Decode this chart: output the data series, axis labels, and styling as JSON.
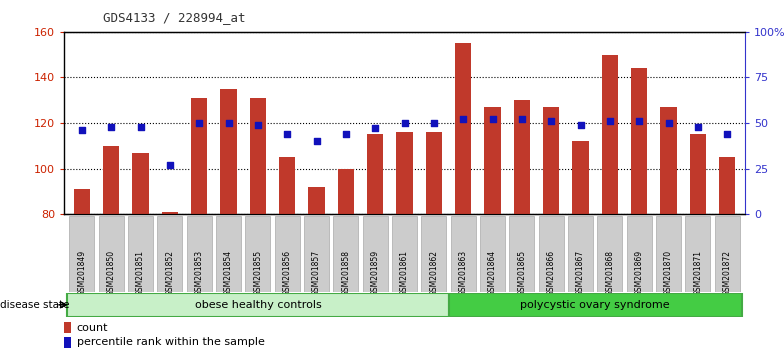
{
  "title": "GDS4133 / 228994_at",
  "samples": [
    "GSM201849",
    "GSM201850",
    "GSM201851",
    "GSM201852",
    "GSM201853",
    "GSM201854",
    "GSM201855",
    "GSM201856",
    "GSM201857",
    "GSM201858",
    "GSM201859",
    "GSM201861",
    "GSM201862",
    "GSM201863",
    "GSM201864",
    "GSM201865",
    "GSM201866",
    "GSM201867",
    "GSM201868",
    "GSM201869",
    "GSM201870",
    "GSM201871",
    "GSM201872"
  ],
  "counts": [
    91,
    110,
    107,
    81,
    131,
    135,
    131,
    105,
    92,
    100,
    115,
    116,
    116,
    155,
    127,
    130,
    127,
    112,
    150,
    144,
    127,
    115,
    105
  ],
  "percentiles": [
    46,
    48,
    48,
    27,
    50,
    50,
    49,
    44,
    40,
    44,
    47,
    50,
    50,
    52,
    52,
    52,
    51,
    49,
    51,
    51,
    50,
    48,
    44
  ],
  "bar_color": "#c0392b",
  "dot_color": "#1111bb",
  "ylim_left": [
    80,
    160
  ],
  "ylim_right": [
    0,
    100
  ],
  "yticks_left": [
    80,
    100,
    120,
    140,
    160
  ],
  "yticks_right": [
    0,
    25,
    50,
    75,
    100
  ],
  "ytick_labels_right": [
    "0",
    "25",
    "50",
    "75",
    "100%"
  ],
  "group1_label": "obese healthy controls",
  "group2_label": "polycystic ovary syndrome",
  "group1_count": 13,
  "legend_count": "count",
  "legend_pct": "percentile rank within the sample",
  "disease_state_label": "disease state",
  "left_axis_color": "#cc2200",
  "right_axis_color": "#3333cc",
  "group1_color": "#c8f0c8",
  "group2_color": "#44cc44",
  "xtick_bg_color": "#cccccc",
  "xtick_edge_color": "#aaaaaa",
  "title_color": "#333333"
}
